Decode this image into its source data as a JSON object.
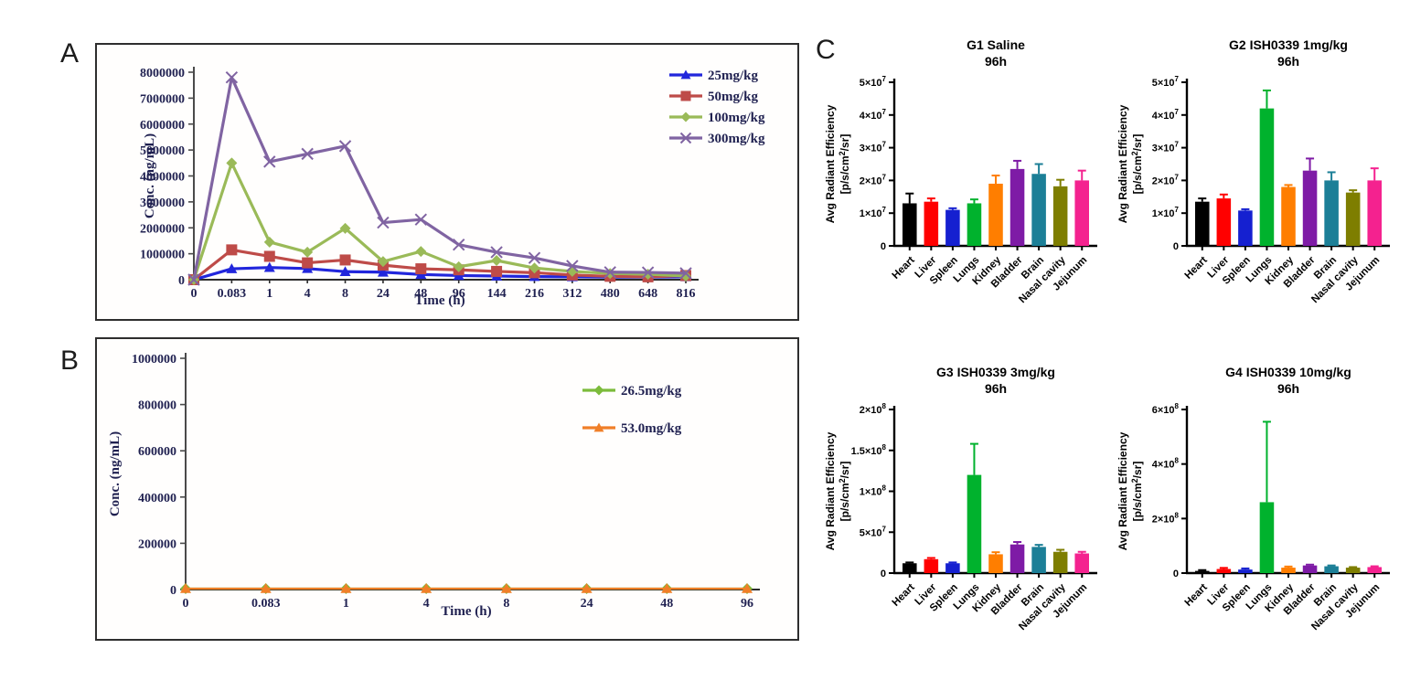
{
  "panels": {
    "a_label": "A",
    "b_label": "B",
    "c_label": "C"
  },
  "chart_data": [
    {
      "id": "A",
      "type": "line",
      "title": "",
      "xlabel": "Time (h)",
      "ylabel": "Conc. (ng/mL)",
      "categories": [
        "0",
        "0.083",
        "1",
        "4",
        "8",
        "24",
        "48",
        "96",
        "144",
        "216",
        "312",
        "480",
        "648",
        "816"
      ],
      "ylim": [
        0,
        8000000
      ],
      "ytick_step": 1000000,
      "grid": false,
      "legend_position": "top-right-inside",
      "series": [
        {
          "name": "25mg/kg",
          "color": "#2126DC",
          "marker": "triangle",
          "values": [
            0,
            420000,
            470000,
            430000,
            310000,
            290000,
            200000,
            160000,
            140000,
            120000,
            110000,
            100000,
            100000,
            110000
          ]
        },
        {
          "name": "50mg/kg",
          "color": "#BE4B48",
          "marker": "square",
          "values": [
            0,
            1150000,
            900000,
            650000,
            760000,
            560000,
            420000,
            380000,
            320000,
            270000,
            180000,
            130000,
            110000,
            160000
          ]
        },
        {
          "name": "100mg/kg",
          "color": "#9ABA58",
          "marker": "diamond",
          "values": [
            0,
            4500000,
            1450000,
            1060000,
            1980000,
            700000,
            1090000,
            500000,
            740000,
            450000,
            320000,
            240000,
            210000,
            140000
          ]
        },
        {
          "name": "300mg/kg",
          "color": "#8064A2",
          "marker": "xcross",
          "values": [
            0,
            7800000,
            4550000,
            4850000,
            5150000,
            2200000,
            2320000,
            1350000,
            1060000,
            840000,
            530000,
            290000,
            280000,
            250000
          ]
        }
      ]
    },
    {
      "id": "B",
      "type": "line",
      "title": "",
      "xlabel": "Time (h)",
      "ylabel": "Conc. (ng/mL)",
      "categories": [
        "0",
        "0.083",
        "1",
        "4",
        "8",
        "24",
        "48",
        "96"
      ],
      "ylim": [
        0,
        1000000
      ],
      "ytick_step": 200000,
      "grid": false,
      "legend_position": "center-right-inside",
      "series": [
        {
          "name": "26.5mg/kg",
          "color": "#7CBB3B",
          "marker": "diamond",
          "values": [
            4000,
            4000,
            4000,
            4000,
            4000,
            4000,
            4000,
            4000
          ]
        },
        {
          "name": "53.0mg/kg",
          "color": "#F07F28",
          "marker": "triangle",
          "values": [
            4000,
            4000,
            4000,
            4000,
            4000,
            4000,
            4000,
            4000
          ]
        }
      ]
    },
    {
      "id": "C1",
      "type": "bar",
      "title_line1": "G1 Saline",
      "title_line2": "96h",
      "ylabel_line1": "Avg Radiant Efficiency",
      "ylabel_line2_pre": "[p/s/cm",
      "ylabel_sup": "2",
      "ylabel_line2_post": "/sr]",
      "categories": [
        "Heart",
        "Liver",
        "Spleen",
        "Lungs",
        "Kidney",
        "Bladder",
        "Brain",
        "Nasal cavity",
        "Jejunum"
      ],
      "bar_colors": [
        "#000000",
        "#FF0000",
        "#1520D0",
        "#00B22D",
        "#FF7E00",
        "#7E1BA6",
        "#1C7F97",
        "#7E7E00",
        "#F4228F"
      ],
      "values": [
        13000000,
        13500000,
        11000000,
        13000000,
        19000000,
        23500000,
        22000000,
        18200000,
        20000000
      ],
      "errors": [
        3000000,
        1000000,
        500000,
        1200000,
        2500000,
        2500000,
        3000000,
        2000000,
        3000000
      ],
      "ylim": [
        0,
        50000000
      ],
      "yticks": [
        {
          "v": 0,
          "label": "0",
          "exp": ""
        },
        {
          "v": 10000000,
          "label": "1×10",
          "exp": "7"
        },
        {
          "v": 20000000,
          "label": "2×10",
          "exp": "7"
        },
        {
          "v": 30000000,
          "label": "3×10",
          "exp": "7"
        },
        {
          "v": 40000000,
          "label": "4×10",
          "exp": "7"
        },
        {
          "v": 50000000,
          "label": "5×10",
          "exp": "7"
        }
      ]
    },
    {
      "id": "C2",
      "type": "bar",
      "title_line1": "G2 ISH0339 1mg/kg",
      "title_line2": "96h",
      "ylabel_line1": "Avg Radiant Efficiency",
      "ylabel_line2_pre": "[p/s/cm",
      "ylabel_sup": "2",
      "ylabel_line2_post": "/sr]",
      "categories": [
        "Heart",
        "Liver",
        "Spleen",
        "Lungs",
        "Kidney",
        "Bladder",
        "Brain",
        "Nasal cavity",
        "Jejunum"
      ],
      "bar_colors": [
        "#000000",
        "#FF0000",
        "#1520D0",
        "#00B22D",
        "#FF7E00",
        "#7E1BA6",
        "#1C7F97",
        "#7E7E00",
        "#F4228F"
      ],
      "values": [
        13500000,
        14500000,
        10800000,
        42000000,
        18000000,
        23000000,
        20000000,
        16300000,
        20000000
      ],
      "errors": [
        1000000,
        1200000,
        400000,
        5500000,
        600000,
        3700000,
        2500000,
        700000,
        3700000
      ],
      "ylim": [
        0,
        50000000
      ],
      "yticks": [
        {
          "v": 0,
          "label": "0",
          "exp": ""
        },
        {
          "v": 10000000,
          "label": "1×10",
          "exp": "7"
        },
        {
          "v": 20000000,
          "label": "2×10",
          "exp": "7"
        },
        {
          "v": 30000000,
          "label": "3×10",
          "exp": "7"
        },
        {
          "v": 40000000,
          "label": "4×10",
          "exp": "7"
        },
        {
          "v": 50000000,
          "label": "5×10",
          "exp": "7"
        }
      ]
    },
    {
      "id": "C3",
      "type": "bar",
      "title_line1": "G3 ISH0339 3mg/kg",
      "title_line2": "96h",
      "ylabel_line1": "Avg Radiant Efficiency",
      "ylabel_line2_pre": "[p/s/cm",
      "ylabel_sup": "2",
      "ylabel_line2_post": "/sr]",
      "categories": [
        "Heart",
        "Liver",
        "Spleen",
        "Lungs",
        "Kidney",
        "Bladder",
        "Brain",
        "Nasal cavity",
        "Jejunum"
      ],
      "bar_colors": [
        "#000000",
        "#FF0000",
        "#1520D0",
        "#00B22D",
        "#FF7E00",
        "#7E1BA6",
        "#1C7F97",
        "#7E7E00",
        "#F4228F"
      ],
      "values": [
        12000000,
        17000000,
        12000000,
        120000000,
        23000000,
        35000000,
        32000000,
        26000000,
        24000000
      ],
      "errors": [
        1000000,
        1500000,
        1000000,
        38000000,
        2500000,
        3000000,
        2500000,
        2500000,
        2000000
      ],
      "ylim": [
        0,
        200000000
      ],
      "yticks": [
        {
          "v": 0,
          "label": "0",
          "exp": ""
        },
        {
          "v": 50000000,
          "label": "5×10",
          "exp": "7"
        },
        {
          "v": 100000000,
          "label": "1×10",
          "exp": "8"
        },
        {
          "v": 150000000,
          "label": "1.5×10",
          "exp": "8"
        },
        {
          "v": 200000000,
          "label": "2×10",
          "exp": "8"
        }
      ]
    },
    {
      "id": "C4",
      "type": "bar",
      "title_line1": "G4 ISH0339 10mg/kg",
      "title_line2": "96h",
      "ylabel_line1": "Avg Radiant Efficiency",
      "ylabel_line2_pre": "[p/s/cm",
      "ylabel_sup": "2",
      "ylabel_line2_post": "/sr]",
      "categories": [
        "Heart",
        "Liver",
        "Spleen",
        "Lungs",
        "Kidney",
        "Bladder",
        "Brain",
        "Nasal cavity",
        "Jejunum"
      ],
      "bar_colors": [
        "#000000",
        "#FF0000",
        "#1520D0",
        "#00B22D",
        "#FF7E00",
        "#7E1BA6",
        "#1C7F97",
        "#7E7E00",
        "#F4228F"
      ],
      "values": [
        8000000,
        15000000,
        13000000,
        260000000,
        20000000,
        28000000,
        25000000,
        20000000,
        22000000
      ],
      "errors": [
        3000000,
        4000000,
        4000000,
        295000000,
        4000000,
        3000000,
        3000000,
        2000000,
        3000000
      ],
      "ylim": [
        0,
        600000000
      ],
      "yticks": [
        {
          "v": 0,
          "label": "0",
          "exp": ""
        },
        {
          "v": 200000000,
          "label": "2×10",
          "exp": "8"
        },
        {
          "v": 400000000,
          "label": "4×10",
          "exp": "8"
        },
        {
          "v": 600000000,
          "label": "6×10",
          "exp": "8"
        }
      ]
    }
  ]
}
